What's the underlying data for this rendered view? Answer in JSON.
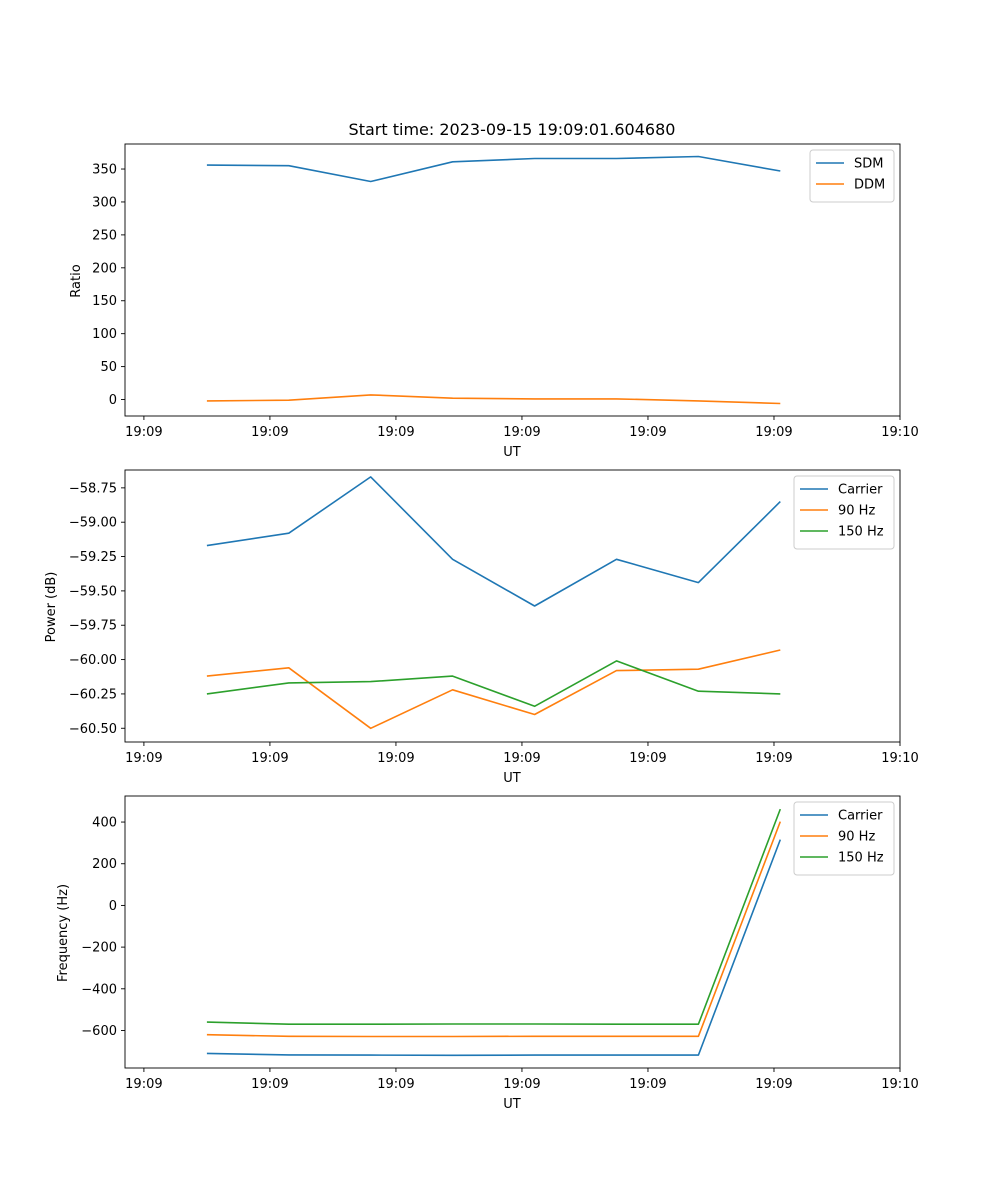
{
  "colors": {
    "blue": "#1f77b4",
    "orange": "#ff7f0e",
    "green": "#2ca02c"
  },
  "chart_data": [
    {
      "type": "line",
      "title": "Start time: 2023-09-15 19:09:01.604680",
      "xlabel": "UT",
      "ylabel": "Ratio",
      "x": [
        0.5,
        1.15,
        1.8,
        2.45,
        3.1,
        3.75,
        4.4,
        5.05
      ],
      "xlim": [
        -0.15,
        6.0
      ],
      "ylim": [
        -25,
        388
      ],
      "yticks": [
        0,
        50,
        100,
        150,
        200,
        250,
        300,
        350
      ],
      "ytick_labels": [
        "0",
        "50",
        "100",
        "150",
        "200",
        "250",
        "300",
        "350"
      ],
      "xticks": [
        0,
        1,
        2,
        3,
        4,
        5,
        6
      ],
      "xtick_labels": [
        "19:09",
        "19:09",
        "19:09",
        "19:09",
        "19:09",
        "19:09",
        "19:10"
      ],
      "legend": "top-right",
      "series": [
        {
          "name": "SDM",
          "color": "#1f77b4",
          "values": [
            356,
            355,
            331,
            361,
            366,
            366,
            369,
            347
          ]
        },
        {
          "name": "DDM",
          "color": "#ff7f0e",
          "values": [
            -2,
            -1,
            7,
            2,
            1,
            1,
            -2,
            -6
          ]
        }
      ]
    },
    {
      "type": "line",
      "title": "",
      "xlabel": "UT",
      "ylabel": "Power (dB)",
      "x": [
        0.5,
        1.15,
        1.8,
        2.45,
        3.1,
        3.75,
        4.4,
        5.05
      ],
      "xlim": [
        -0.15,
        6.0
      ],
      "ylim": [
        -60.6,
        -58.62
      ],
      "yticks": [
        -60.5,
        -60.25,
        -60.0,
        -59.75,
        -59.5,
        -59.25,
        -59.0,
        -58.75
      ],
      "ytick_labels": [
        "−60.50",
        "−60.25",
        "−60.00",
        "−59.75",
        "−59.50",
        "−59.25",
        "−59.00",
        "−58.75"
      ],
      "xticks": [
        0,
        1,
        2,
        3,
        4,
        5,
        6
      ],
      "xtick_labels": [
        "19:09",
        "19:09",
        "19:09",
        "19:09",
        "19:09",
        "19:09",
        "19:10"
      ],
      "legend": "top-right",
      "series": [
        {
          "name": "Carrier",
          "color": "#1f77b4",
          "values": [
            -59.17,
            -59.08,
            -58.67,
            -59.27,
            -59.61,
            -59.27,
            -59.44,
            -58.85
          ]
        },
        {
          "name": "90 Hz",
          "color": "#ff7f0e",
          "values": [
            -60.12,
            -60.06,
            -60.5,
            -60.22,
            -60.4,
            -60.08,
            -60.07,
            -59.93
          ]
        },
        {
          "name": "150 Hz",
          "color": "#2ca02c",
          "values": [
            -60.25,
            -60.17,
            -60.16,
            -60.12,
            -60.34,
            -60.01,
            -60.23,
            -60.25
          ]
        }
      ]
    },
    {
      "type": "line",
      "title": "",
      "xlabel": "UT",
      "ylabel": "Frequency (Hz)",
      "x": [
        0.5,
        1.15,
        1.8,
        2.45,
        3.1,
        3.75,
        4.4,
        5.05
      ],
      "xlim": [
        -0.15,
        6.0
      ],
      "ylim": [
        -780,
        525
      ],
      "yticks": [
        -600,
        -400,
        -200,
        0,
        200,
        400
      ],
      "ytick_labels": [
        "−600",
        "−400",
        "−200",
        "0",
        "200",
        "400"
      ],
      "xticks": [
        0,
        1,
        2,
        3,
        4,
        5,
        6
      ],
      "xtick_labels": [
        "19:09",
        "19:09",
        "19:09",
        "19:09",
        "19:09",
        "19:09",
        "19:10"
      ],
      "legend": "top-right",
      "series": [
        {
          "name": "Carrier",
          "color": "#1f77b4",
          "values": [
            -710,
            -717,
            -718,
            -719,
            -718,
            -718,
            -718,
            316
          ]
        },
        {
          "name": "90 Hz",
          "color": "#ff7f0e",
          "values": [
            -620,
            -628,
            -629,
            -629,
            -628,
            -628,
            -628,
            402
          ]
        },
        {
          "name": "150 Hz",
          "color": "#2ca02c",
          "values": [
            -560,
            -570,
            -570,
            -569,
            -569,
            -570,
            -570,
            462
          ]
        }
      ]
    }
  ]
}
